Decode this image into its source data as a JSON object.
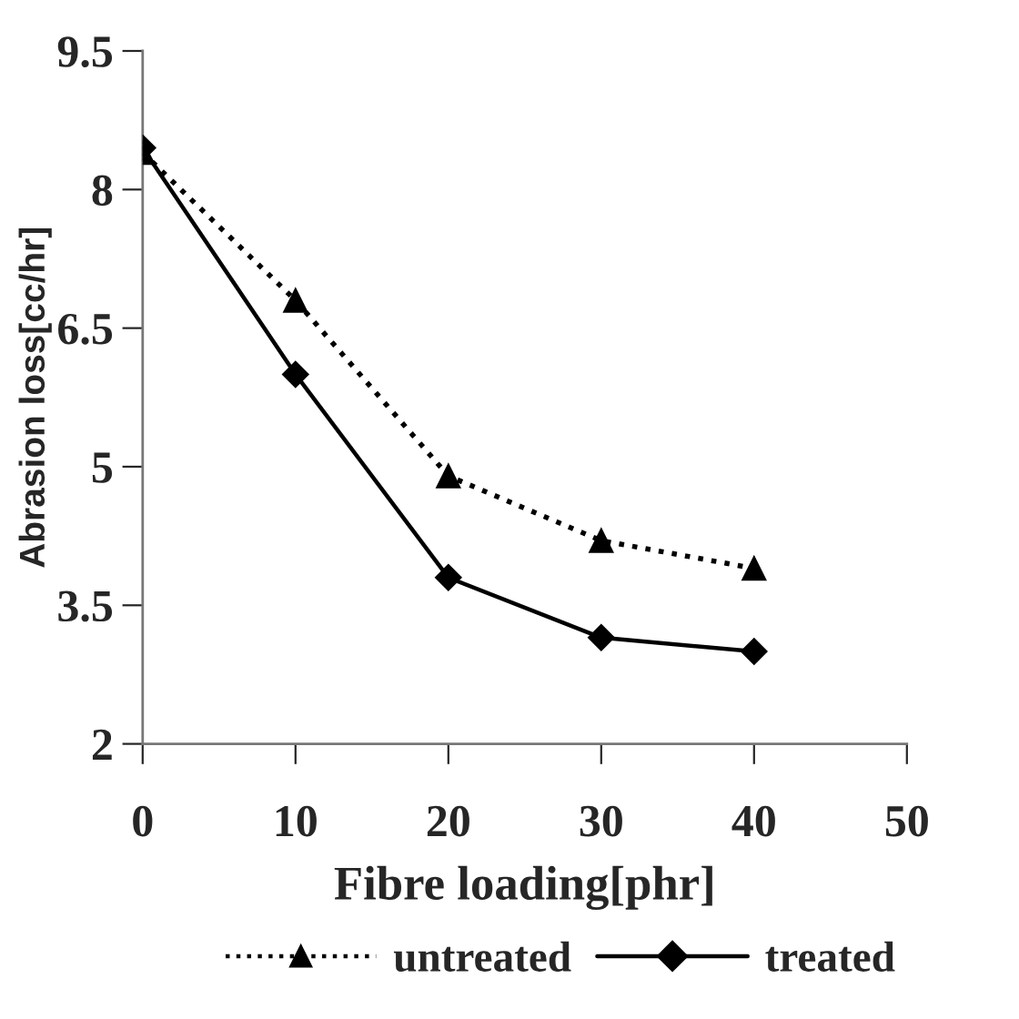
{
  "chart_data": {
    "type": "line",
    "xlabel": "Fibre loading[phr]",
    "ylabel": "Abrasion loss[cc/hr]",
    "x": [
      0,
      10,
      20,
      30,
      40
    ],
    "series": [
      {
        "name": "untreated",
        "color": "#000000",
        "values": [
          8.4,
          6.8,
          4.9,
          4.2,
          3.9
        ],
        "marker": "triangle",
        "line_style": "dotted"
      },
      {
        "name": "treated",
        "color": "#000000",
        "values": [
          8.45,
          6.0,
          3.8,
          3.15,
          3.0
        ],
        "marker": "diamond",
        "line_style": "solid"
      }
    ],
    "xlim": [
      0,
      50
    ],
    "xticks": [
      0,
      10,
      20,
      30,
      40,
      50
    ],
    "ylim": [
      2,
      9.5
    ],
    "yticks": [
      2,
      3.5,
      5,
      6.5,
      8,
      9.5
    ],
    "grid": false,
    "legend": "bottom"
  }
}
